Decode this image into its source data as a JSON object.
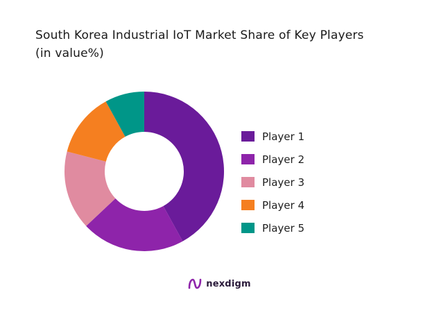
{
  "chart_data": {
    "type": "pie",
    "title": "South Korea Industrial IoT Market Share of Key Players",
    "subtitle": "(in value%)",
    "donut": true,
    "categories": [
      "Player 1",
      "Player 2",
      "Player 3",
      "Player 4",
      "Player 5"
    ],
    "values": [
      42,
      21,
      16,
      13,
      8
    ],
    "colors": [
      "#6a1b9a",
      "#8e24aa",
      "#e08ba0",
      "#f57f20",
      "#009688"
    ],
    "legend_placement": "right"
  },
  "brand": {
    "name": "nexdigm",
    "icon": "nexdigm-logo-icon"
  }
}
